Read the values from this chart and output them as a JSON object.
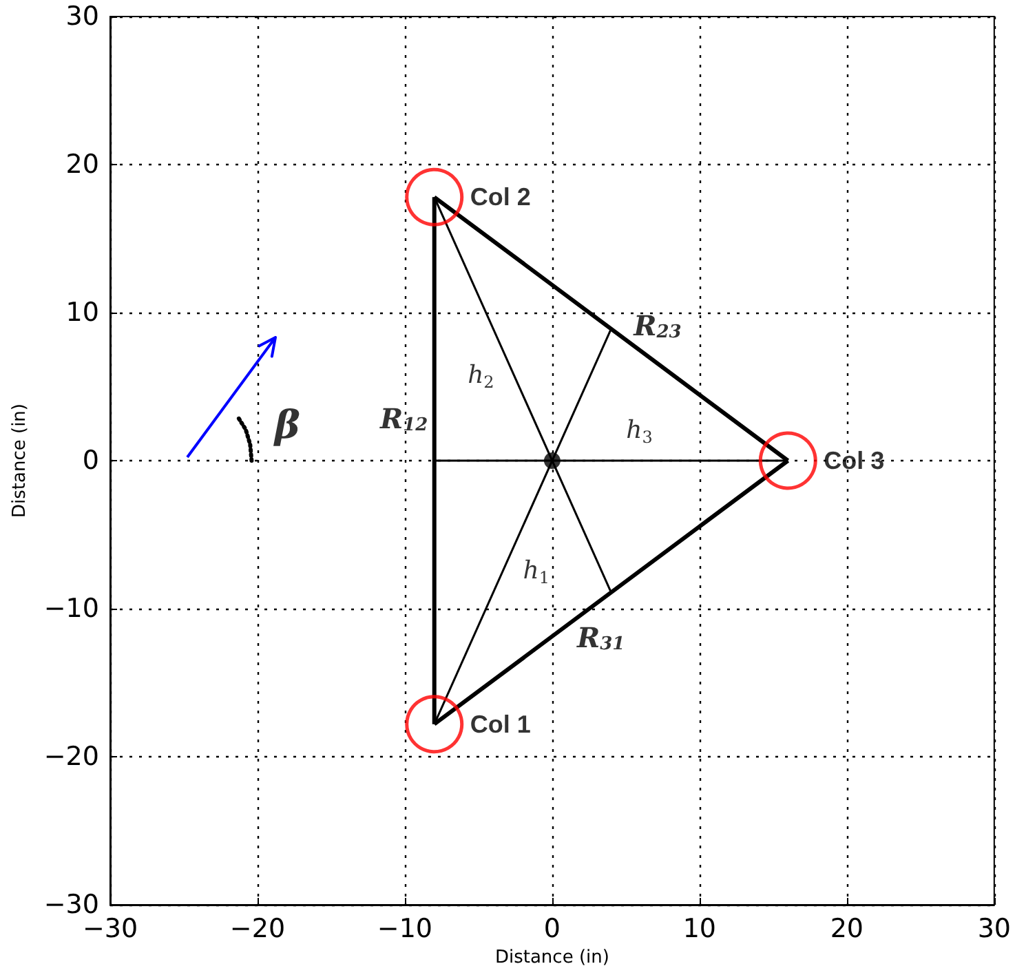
{
  "chart_data": {
    "type": "line",
    "xlabel": "Distance (in)",
    "ylabel": "Distance (in)",
    "xlim": [
      -30,
      30
    ],
    "xticks": [
      -30,
      -20,
      -10,
      0,
      10,
      20,
      30
    ],
    "ylim": [
      -30,
      30
    ],
    "yticks": [
      -30,
      -20,
      -10,
      0,
      10,
      20,
      30
    ],
    "grid": true,
    "marker": "none",
    "line_style": "solid",
    "legend": false,
    "series": [
      {
        "name": "R$_{12}$",
        "color": "#000000",
        "x": [
          -8,
          -8
        ],
        "values": [
          17.8,
          -17.8
        ]
      },
      {
        "name": "R$_{23}$",
        "color": "#000000",
        "x": [
          16,
          -8
        ],
        "values": [
          0,
          17.8
        ]
      },
      {
        "name": "R$_{31}$",
        "color": "#000000",
        "x": [
          -8,
          16
        ],
        "values": [
          -17.8,
          0
        ]
      },
      {
        "name": "h$_{1}$",
        "color": "#000000",
        "x": [
          -8,
          4
        ],
        "values": [
          -17.8,
          8.9
        ]
      },
      {
        "name": "h$_{2}$",
        "color": "#000000",
        "x": [
          -8,
          4
        ],
        "values": [
          17.8,
          -8.9
        ]
      },
      {
        "name": "h$_{3}$",
        "color": "#000000",
        "x": [
          16,
          -8
        ],
        "values": [
          0,
          0
        ]
      },
      {
        "name": "β",
        "color": "#000000",
        "x": [
          -20.4,
          -20.5,
          -20.8,
          -21.3
        ],
        "values": [
          0,
          1.1,
          2.1,
          2.9
        ],
        "line_style": "dotted"
      },
      {
        "type": "scatter",
        "color": "#000000",
        "x": [
          0
        ],
        "values": [
          0
        ],
        "marker": "circle"
      },
      {
        "type": "scatter",
        "name": "Col 1",
        "color": "#ff0000",
        "x": [
          -8
        ],
        "values": [
          -17.8
        ],
        "marker": "circle"
      },
      {
        "type": "scatter",
        "name": "Col 2",
        "color": "#ff0000",
        "x": [
          -8
        ],
        "values": [
          17.8
        ],
        "marker": "circle"
      },
      {
        "type": "scatter",
        "name": "Col 3",
        "color": "#ff0000",
        "x": [
          16
        ],
        "values": [
          0
        ],
        "marker": "circle"
      }
    ]
  }
}
